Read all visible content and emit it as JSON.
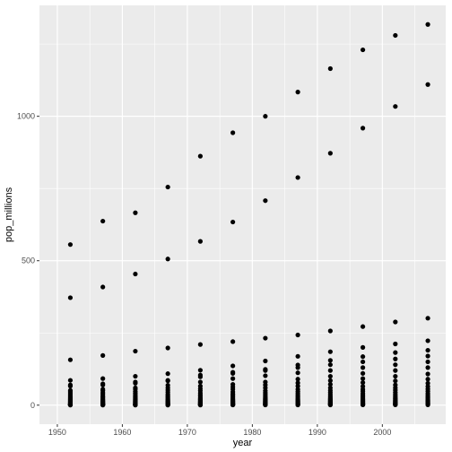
{
  "chart_data": {
    "type": "scatter",
    "xlabel": "year",
    "ylabel": "pop_millions",
    "xlim": [
      1950,
      2007
    ],
    "ylim": [
      0,
      1318
    ],
    "x_ticks": [
      1950,
      1960,
      1970,
      1980,
      1990,
      2000
    ],
    "y_ticks": [
      0,
      500,
      1000
    ],
    "x_tick_labels": [
      "1950",
      "1960",
      "1970",
      "1980",
      "1990",
      "2000"
    ],
    "y_tick_labels": [
      "0",
      "500",
      "1000"
    ],
    "grid": true,
    "colors": {
      "panel": "#ebebeb",
      "grid": "#ffffff",
      "point": "#000000"
    },
    "x": [
      1952,
      1957,
      1962,
      1967,
      1972,
      1977,
      1982,
      1987,
      1992,
      1997,
      2002,
      2007
    ],
    "series": [
      {
        "values": [
          556,
          637,
          666,
          755,
          862,
          943,
          1000,
          1084,
          1165,
          1230,
          1280,
          1318
        ]
      },
      {
        "values": [
          372,
          409,
          454,
          506,
          567,
          634,
          708,
          788,
          872,
          959,
          1034,
          1110
        ]
      },
      {
        "values": [
          157,
          172,
          187,
          198,
          210,
          220,
          232,
          243,
          257,
          272,
          288,
          301
        ]
      },
      {
        "values": [
          86,
          92,
          100,
          109,
          121,
          136,
          153,
          169,
          185,
          200,
          212,
          223
        ]
      },
      {
        "values": [
          70,
          74,
          80,
          86,
          104,
          114,
          124,
          139,
          155,
          168,
          182,
          190
        ]
      },
      {
        "values": [
          66,
          70,
          76,
          84,
          98,
          110,
          120,
          130,
          140,
          150,
          160,
          170
        ]
      },
      {
        "values": [
          51,
          55,
          60,
          69,
          80,
          92,
          102,
          112,
          120,
          130,
          140,
          150
        ]
      },
      {
        "values": [
          46,
          50,
          55,
          60,
          66,
          72,
          80,
          90,
          100,
          110,
          120,
          130
        ]
      },
      {
        "values": [
          40,
          43,
          47,
          52,
          57,
          63,
          70,
          77,
          85,
          92,
          100,
          108
        ]
      },
      {
        "values": [
          35,
          38,
          41,
          45,
          50,
          55,
          60,
          66,
          72,
          78,
          84,
          90
        ]
      },
      {
        "values": [
          30,
          32,
          35,
          38,
          42,
          46,
          50,
          55,
          60,
          65,
          70,
          76
        ]
      },
      {
        "values": [
          26,
          28,
          30,
          33,
          36,
          39,
          43,
          47,
          51,
          55,
          60,
          65
        ]
      },
      {
        "values": [
          22,
          24,
          26,
          28,
          31,
          34,
          37,
          40,
          44,
          48,
          52,
          56
        ]
      },
      {
        "values": [
          19,
          20,
          22,
          24,
          26,
          29,
          31,
          34,
          37,
          40,
          44,
          48
        ]
      },
      {
        "values": [
          16,
          17,
          19,
          20,
          22,
          24,
          26,
          29,
          31,
          34,
          37,
          40
        ]
      },
      {
        "values": [
          13,
          14,
          16,
          17,
          19,
          20,
          22,
          24,
          26,
          29,
          31,
          34
        ]
      },
      {
        "values": [
          11,
          12,
          13,
          14,
          16,
          17,
          19,
          20,
          22,
          24,
          26,
          28
        ]
      },
      {
        "values": [
          9,
          10,
          11,
          12,
          13,
          14,
          16,
          17,
          19,
          20,
          22,
          24
        ]
      },
      {
        "values": [
          7,
          8,
          9,
          10,
          11,
          12,
          13,
          14,
          16,
          17,
          18,
          20
        ]
      },
      {
        "values": [
          5,
          6,
          7,
          8,
          9,
          10,
          11,
          12,
          13,
          14,
          15,
          16
        ]
      },
      {
        "values": [
          4,
          4.5,
          5,
          6,
          7,
          8,
          9,
          10,
          11,
          12,
          12,
          13
        ]
      },
      {
        "values": [
          3,
          3.5,
          4,
          4.5,
          5,
          6,
          7,
          8,
          8,
          9,
          10,
          10
        ]
      },
      {
        "values": [
          2,
          2.5,
          3,
          3.5,
          4,
          4.5,
          5,
          6,
          6,
          7,
          7,
          8
        ]
      },
      {
        "values": [
          1.5,
          1.7,
          2,
          2.3,
          2.6,
          3,
          3.5,
          4,
          4.5,
          5,
          5.5,
          6
        ]
      },
      {
        "values": [
          1,
          1.1,
          1.3,
          1.5,
          1.7,
          2,
          2.3,
          2.6,
          3,
          3.3,
          3.6,
          4
        ]
      },
      {
        "values": [
          0.6,
          0.7,
          0.8,
          0.9,
          1,
          1.2,
          1.4,
          1.6,
          1.8,
          2,
          2.2,
          2.4
        ]
      },
      {
        "values": [
          0.3,
          0.35,
          0.4,
          0.45,
          0.5,
          0.6,
          0.7,
          0.8,
          0.9,
          1,
          1.1,
          1.2
        ]
      }
    ]
  }
}
